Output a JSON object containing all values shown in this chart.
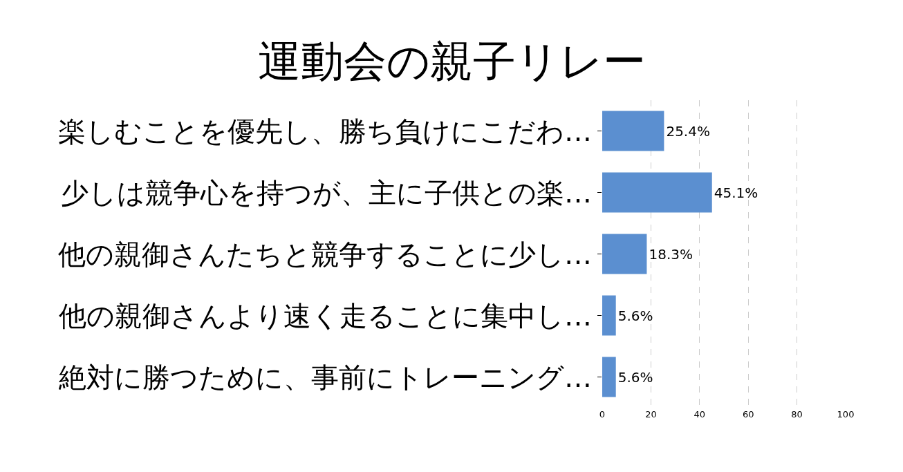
{
  "chart_data": {
    "type": "bar",
    "orientation": "horizontal",
    "title": "運動会の親子リレー",
    "categories": [
      "楽しむことを優先し、勝ち負けにこだわ…",
      "少しは競争心を持つが、主に子供との楽…",
      "他の親御さんたちと競争することに少し…",
      "他の親御さんより速く走ることに集中し…",
      "絶対に勝つために、事前にトレーニング…"
    ],
    "values": [
      25.4,
      45.1,
      18.3,
      5.6,
      5.6
    ],
    "value_labels": [
      "25.4%",
      "45.1%",
      "18.3%",
      "5.6%",
      "5.6%"
    ],
    "color": "#5b8fd0",
    "xlim": [
      0,
      100
    ],
    "xticks": [
      0,
      20,
      40,
      60,
      80,
      100
    ],
    "grid": "x"
  }
}
